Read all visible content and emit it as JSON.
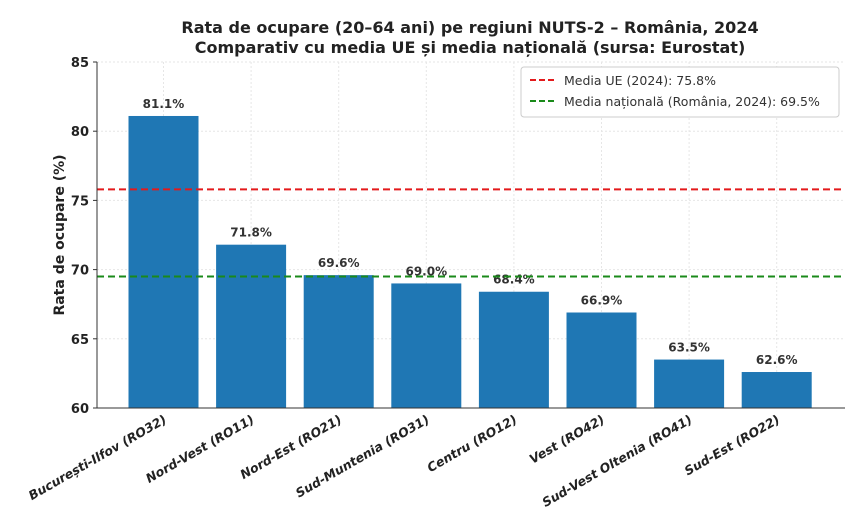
{
  "chart_data": {
    "type": "bar",
    "title": "Rata de ocupare (20–64 ani) pe regiuni NUTS-2 – România, 2024",
    "subtitle": "Comparativ cu media UE și media națională (sursa: Eurostat)",
    "xlabel": "",
    "ylabel": "Rata de ocupare (%)",
    "ylim": [
      60,
      85
    ],
    "yticks": [
      60,
      65,
      70,
      75,
      80,
      85
    ],
    "grid": true,
    "categories": [
      "București-Ilfov (RO32)",
      "Nord-Vest (RO11)",
      "Nord-Est (RO21)",
      "Sud-Muntenia (RO31)",
      "Centru (RO12)",
      "Vest (RO42)",
      "Sud-Vest Oltenia (RO41)",
      "Sud-Est (RO22)"
    ],
    "values": [
      81.1,
      71.8,
      69.6,
      69.0,
      68.4,
      66.9,
      63.5,
      62.6
    ],
    "data_labels": [
      "81.1%",
      "71.8%",
      "69.6%",
      "69.0%",
      "68.4%",
      "66.9%",
      "63.5%",
      "62.6%"
    ],
    "bar_color": "#1f77b4",
    "reference_lines": [
      {
        "name": "Media UE (2024): 75.8%",
        "value": 75.8,
        "color": "#e31a1c",
        "style": "dashed"
      },
      {
        "name": "Media națională (România, 2024): 69.5%",
        "value": 69.5,
        "color": "#1a8a1a",
        "style": "dashed"
      }
    ],
    "legend_position": "top-right"
  }
}
